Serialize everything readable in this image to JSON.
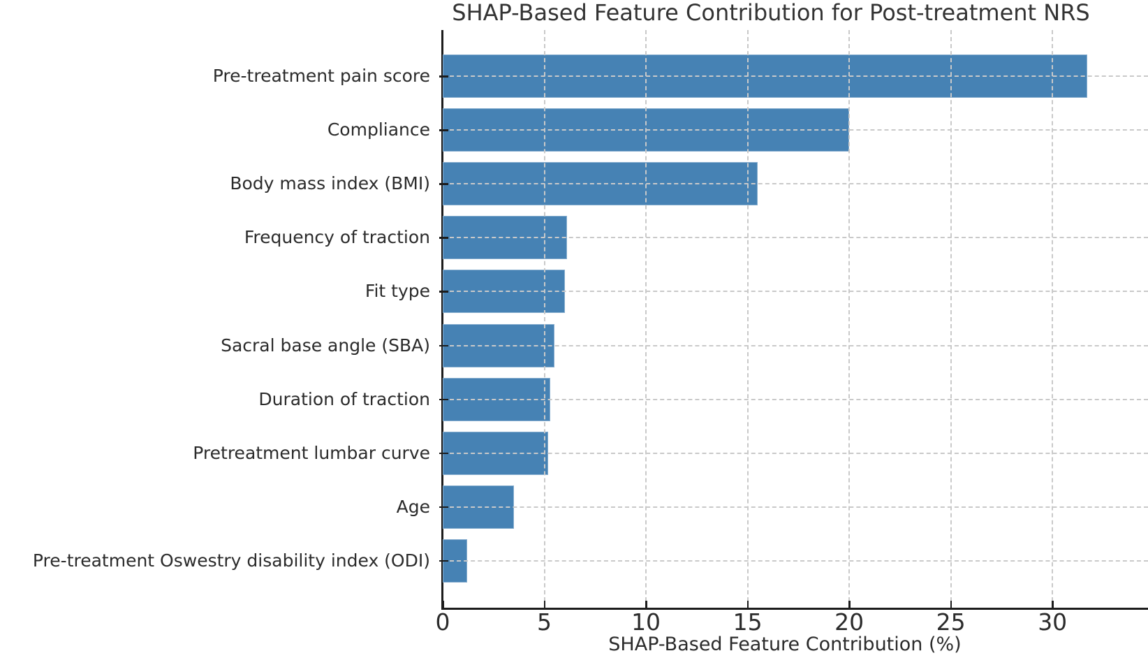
{
  "figure": {
    "title": "SHAP-Based Feature Contribution for Post-treatment NRS",
    "colors": {
      "bar": "#4682B4",
      "grid": "#c9c9c9",
      "spine": "#1c1c1c",
      "text": "#2b2b2b",
      "background": "#ffffff"
    }
  },
  "chart_data": {
    "type": "bar",
    "orientation": "horizontal",
    "title": "SHAP-Based Feature Contribution for Post-treatment NRS",
    "xlabel": "SHAP-Based Feature Contribution (%)",
    "ylabel": "",
    "categories": [
      "Pre-treatment pain score",
      "Compliance",
      "Body mass index (BMI)",
      "Frequency of traction",
      "Fit type",
      "Sacral base angle (SBA)",
      "Duration of traction",
      "Pretreatment lumbar curve",
      "Age",
      "Pre-treatment Oswestry disability index (ODI)"
    ],
    "values": [
      31.7,
      20.0,
      15.5,
      6.1,
      6.0,
      5.5,
      5.3,
      5.2,
      3.5,
      1.2
    ],
    "xticks": [
      0,
      5,
      10,
      15,
      20,
      25,
      30
    ],
    "xlim": [
      0,
      34.7
    ],
    "grid": "dashed gridlines on both axes, drawn over bars",
    "legend": "none",
    "bar_color": "#4682B4"
  }
}
